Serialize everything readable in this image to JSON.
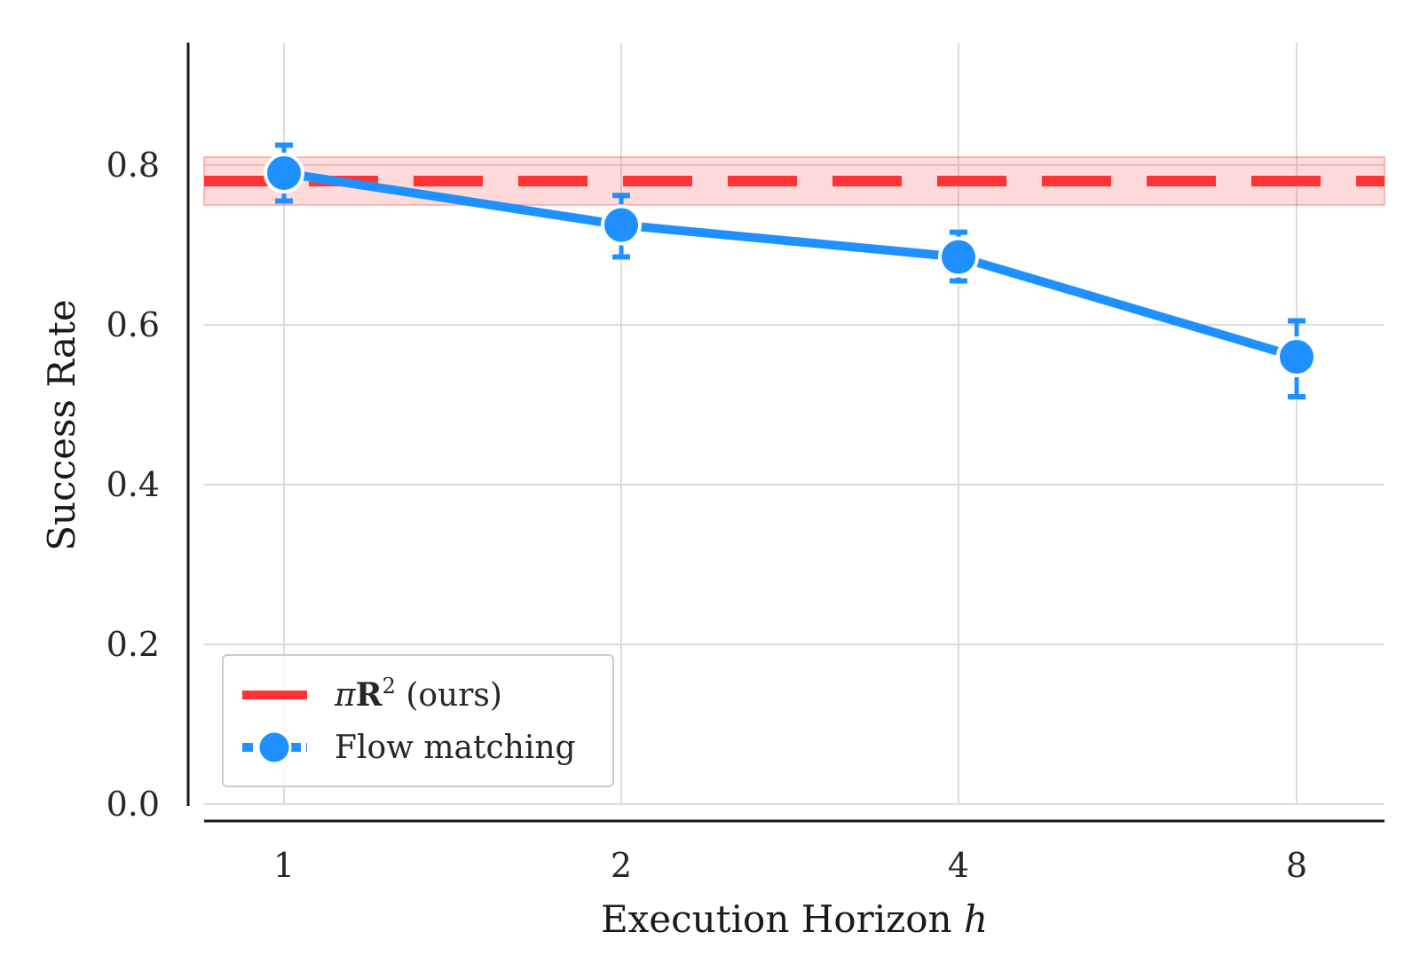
{
  "chart_data": {
    "type": "line",
    "xlabel": "Execution Horizon",
    "xlabel_var": "h",
    "ylabel": "Success Rate",
    "categories": [
      "1",
      "2",
      "4",
      "8"
    ],
    "ylim": [
      0.0,
      0.95
    ],
    "yticks": [
      "0.0",
      "0.2",
      "0.4",
      "0.6",
      "0.8"
    ],
    "grid": true,
    "legend_position": "lower-left",
    "series": [
      {
        "name": "Flow matching",
        "color": "#1e90ff",
        "style": "solid-with-markers",
        "values": [
          0.79,
          0.725,
          0.685,
          0.56
        ],
        "err_low": [
          0.755,
          0.685,
          0.655,
          0.51
        ],
        "err_high": [
          0.825,
          0.762,
          0.716,
          0.605
        ]
      }
    ],
    "reference": {
      "name_symbol": "π",
      "name_bold": "R",
      "name_sup": "2",
      "name_suffix": " (ours)",
      "color": "#ff3333",
      "style": "dashed",
      "value": 0.78,
      "band": [
        0.75,
        0.81
      ]
    }
  }
}
